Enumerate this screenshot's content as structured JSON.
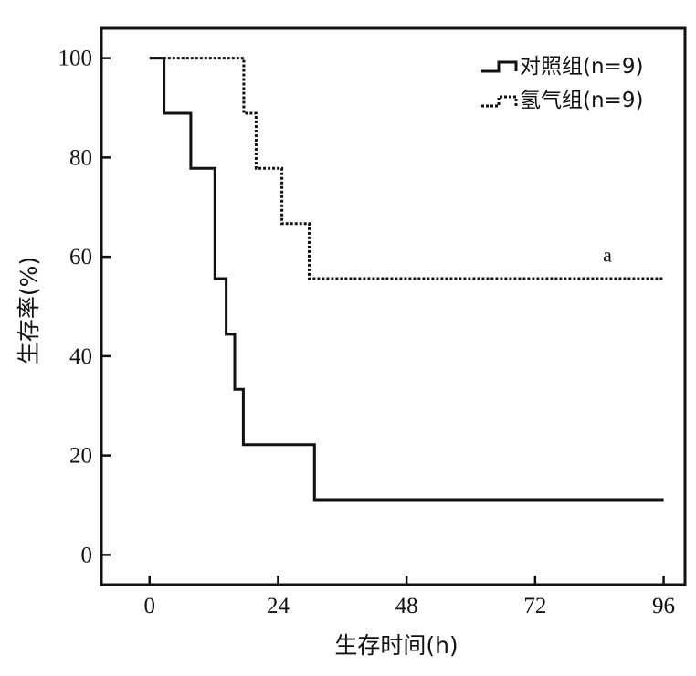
{
  "chart_data": {
    "type": "line",
    "subtype": "step",
    "xlabel": "生存时间(h)",
    "ylabel": "生存率(%)",
    "xlim": [
      -9,
      100
    ],
    "ylim": [
      -6,
      106
    ],
    "xticks": [
      0,
      24,
      48,
      72,
      96
    ],
    "yticks": [
      0,
      20,
      40,
      60,
      80,
      100
    ],
    "grid": false,
    "legend_position": "top-right",
    "series": [
      {
        "name": "对照组(n=9)",
        "style": "solid",
        "color": "#111111",
        "x": [
          0,
          2.7,
          7.7,
          12.2,
          14.3,
          15.9,
          17.5,
          30.8,
          96
        ],
        "y": [
          100,
          88.9,
          77.8,
          55.6,
          44.4,
          33.3,
          22.2,
          11.1,
          11.1
        ]
      },
      {
        "name": "氢气组(n=9)",
        "style": "dashed",
        "color": "#111111",
        "x": [
          0,
          17.6,
          19.9,
          24.7,
          29.8,
          96
        ],
        "y": [
          100,
          88.9,
          77.8,
          66.7,
          55.6,
          55.6
        ]
      }
    ],
    "annotations": [
      {
        "text": "a",
        "x": 85.5,
        "y": 59
      }
    ]
  }
}
